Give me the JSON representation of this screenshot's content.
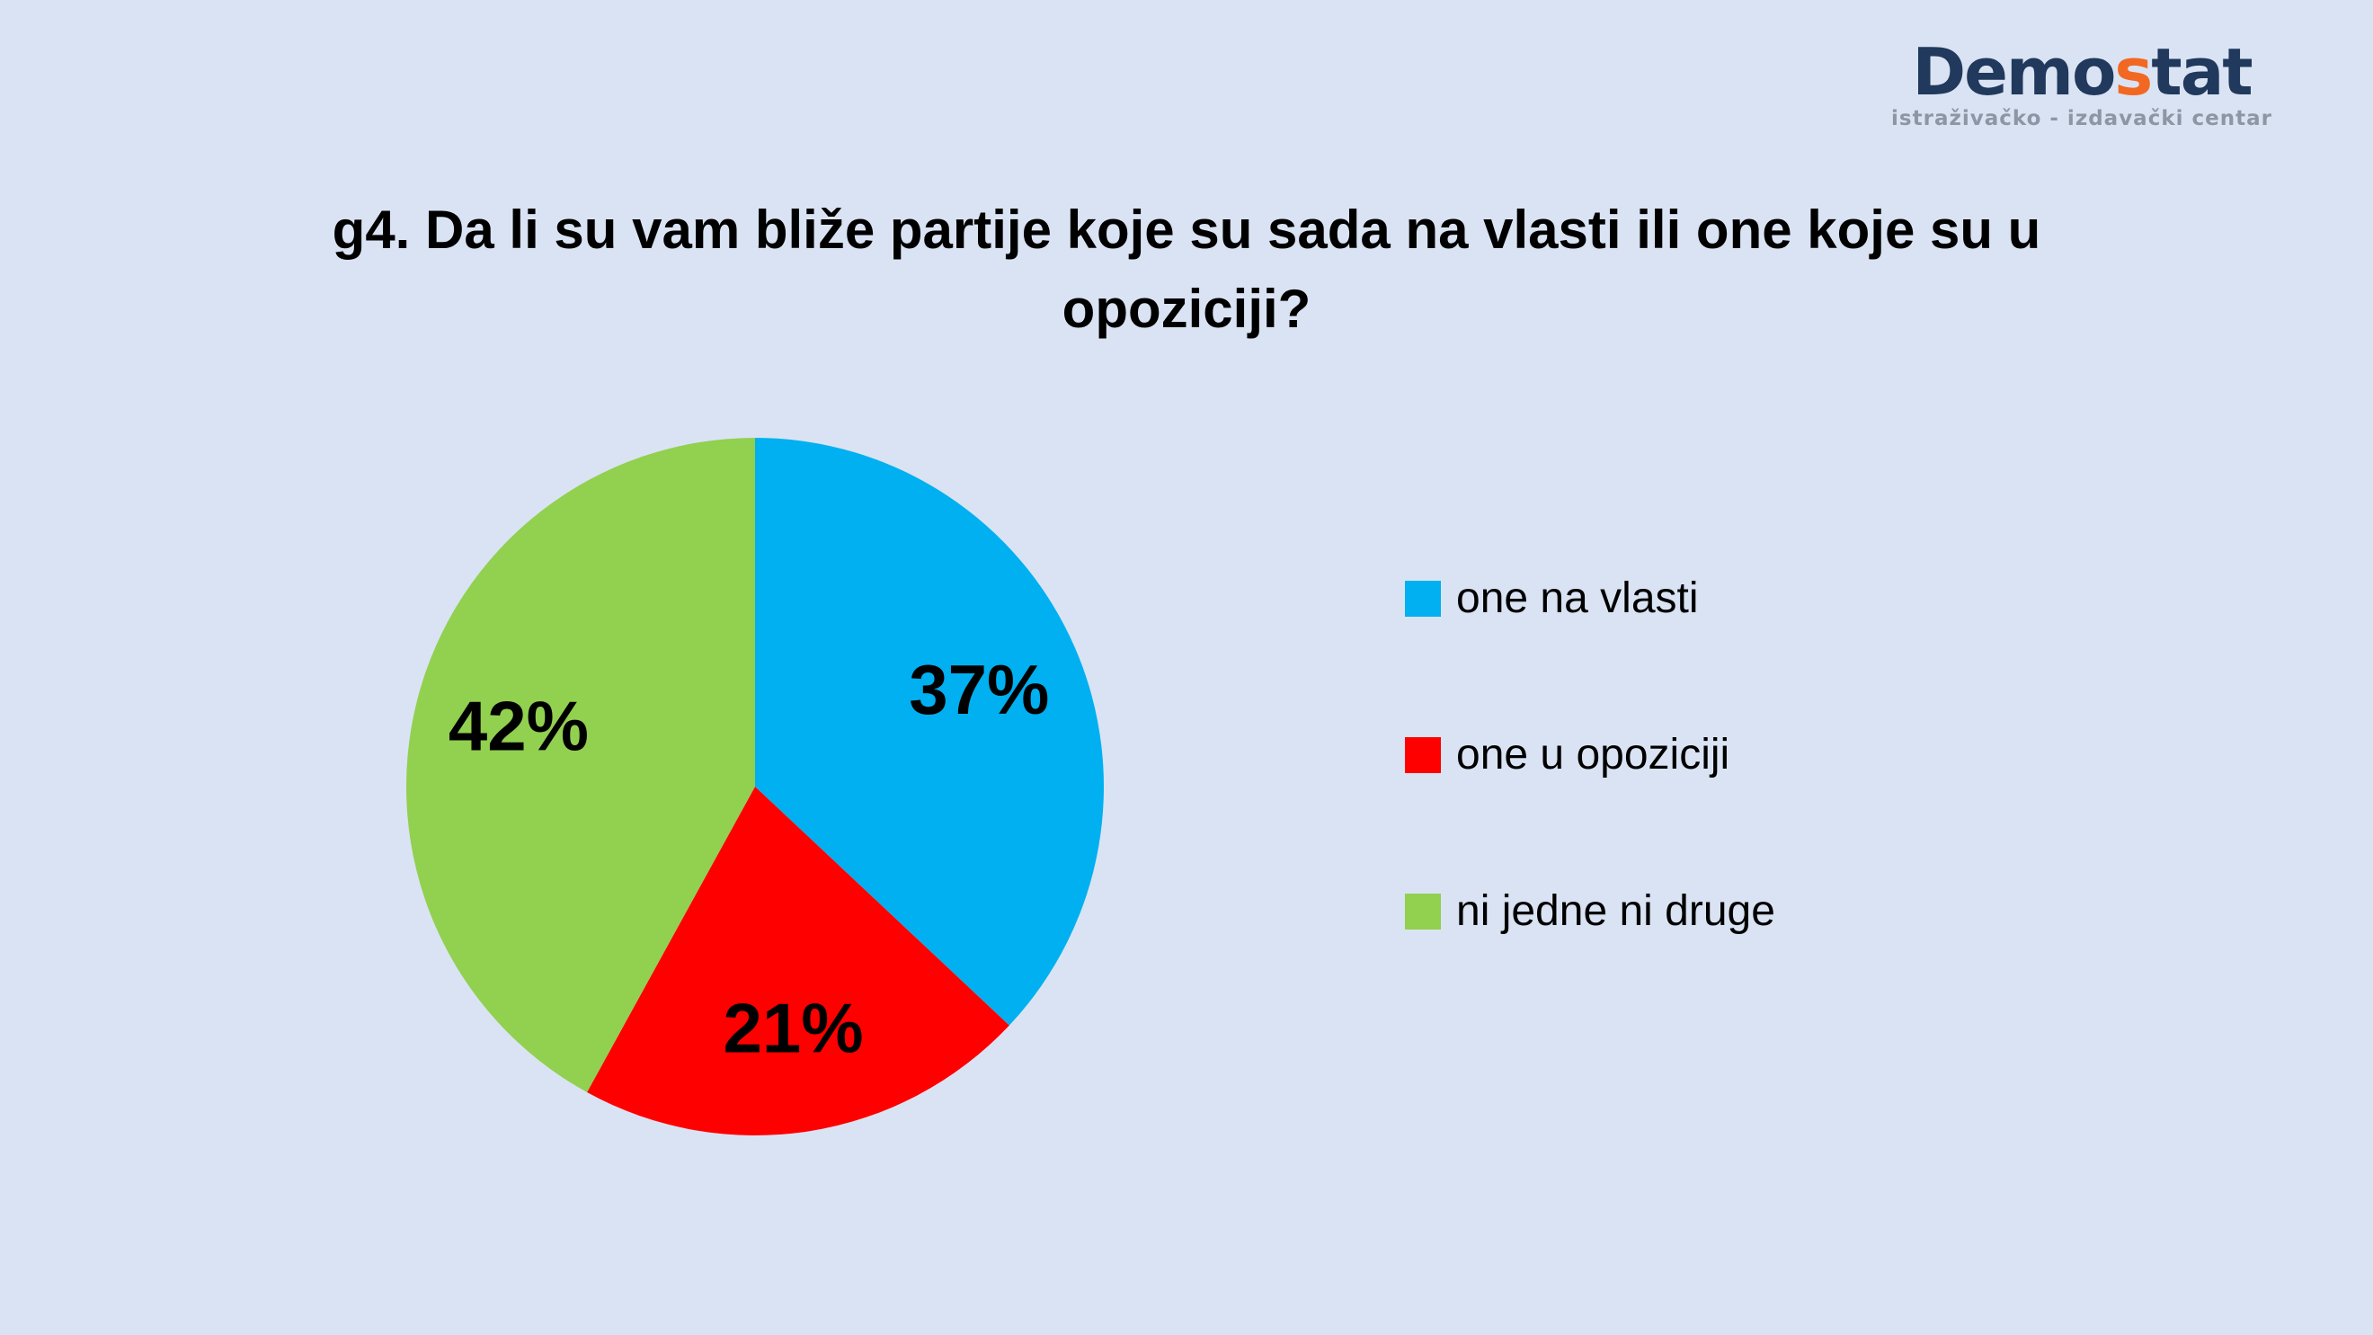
{
  "page": {
    "background_color": "#DAE3F3"
  },
  "logo": {
    "part1": "Demo",
    "part2": "s",
    "part3": "tat",
    "subtitle": "istraživačko - izdavački centar",
    "navy_color": "#20395C",
    "accent_color": "#F26822",
    "subtitle_color": "#8C96A4"
  },
  "header": {
    "title_line1": "g4. Da li su vam bliže partije koje su sada na vlasti ili one koje su u",
    "title_line2": "opoziciji?"
  },
  "chart_data": {
    "type": "pie",
    "title": "g4. Da li su vam bliže partije koje su sada na vlasti ili one koje su u opoziciji?",
    "start_angle_deg": 0,
    "direction": "clockwise",
    "legend_position": "right",
    "data_label_format": "percent",
    "data_label_color": "#000000",
    "slices": [
      {
        "label": "one na vlasti",
        "value_pct": 37,
        "data_label": "37%",
        "color": "#00B0F0"
      },
      {
        "label": "one u opoziciji",
        "value_pct": 21,
        "data_label": "21%",
        "color": "#FF0000"
      },
      {
        "label": "ni jedne ni druge",
        "value_pct": 42,
        "data_label": "42%",
        "color": "#92D050"
      }
    ]
  }
}
